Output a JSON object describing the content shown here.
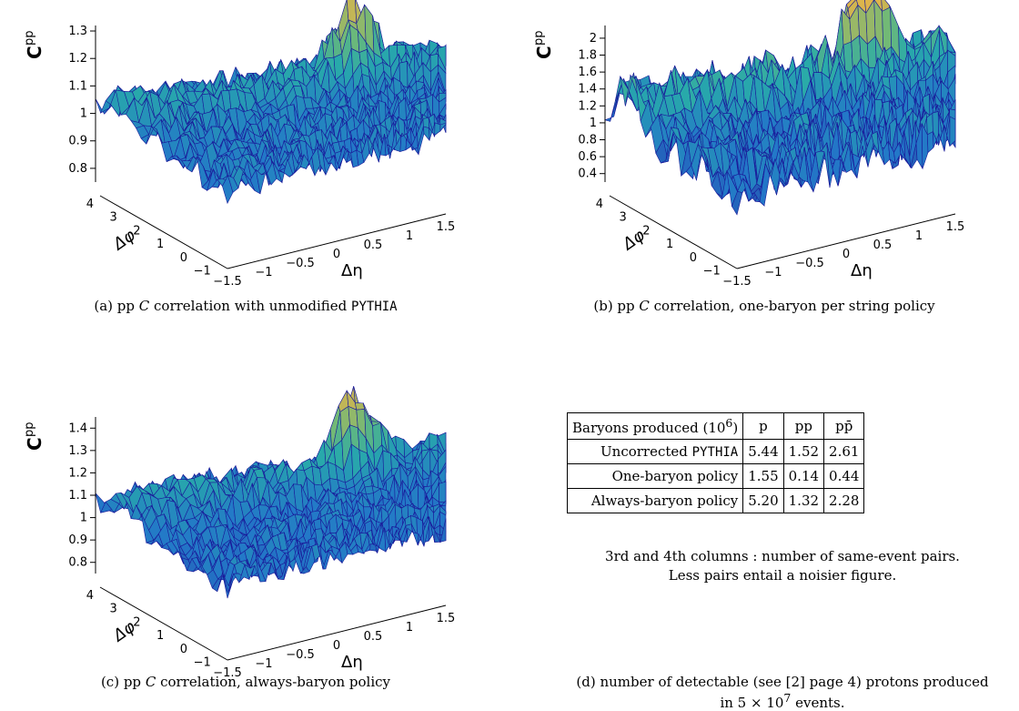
{
  "panels": [
    {
      "caption_prefix": "(a) pp ",
      "caption_var": "C",
      "caption_text": " correlation with unmodified ",
      "caption_code": "PYTHIA",
      "chart_data": {
        "type": "surface",
        "zlabel": "C^pp",
        "xlabel": "Δη",
        "ylabel": "Δφ",
        "z_ticks": [
          "0.8",
          "0.9",
          "1",
          "1.1",
          "1.2",
          "1.3"
        ],
        "z_range": [
          0.75,
          1.32
        ],
        "x_ticks": [
          "−1.5",
          "−1",
          "−0.5",
          "0",
          "0.5",
          "1",
          "1.5"
        ],
        "y_ticks": [
          "−1",
          "0",
          "1",
          "2",
          "3",
          "4"
        ],
        "base_level": 0.95,
        "noise_amplitude": 0.07,
        "near_side_peak": 0.3
      }
    },
    {
      "caption_prefix": "(b) pp ",
      "caption_var": "C",
      "caption_text": " correlation, one-baryon per string policy",
      "caption_code": "",
      "chart_data": {
        "type": "surface",
        "zlabel": "C^pp",
        "xlabel": "Δη",
        "ylabel": "Δφ",
        "z_ticks": [
          "0.4",
          "0.6",
          "0.8",
          "1",
          "1.2",
          "1.4",
          "1.6",
          "1.8",
          "2"
        ],
        "z_range": [
          0.3,
          2.15
        ],
        "x_ticks": [
          "−1.5",
          "−1",
          "−0.5",
          "0",
          "0.5",
          "1",
          "1.5"
        ],
        "y_ticks": [
          "−1",
          "0",
          "1",
          "2",
          "3",
          "4"
        ],
        "base_level": 0.9,
        "noise_amplitude": 0.35,
        "near_side_peak": 1.1
      }
    },
    {
      "caption_prefix": "(c) pp ",
      "caption_var": "C",
      "caption_text": " correlation, always-baryon policy",
      "caption_code": "",
      "chart_data": {
        "type": "surface",
        "zlabel": "C^pp",
        "xlabel": "Δη",
        "ylabel": "Δφ",
        "z_ticks": [
          "0.8",
          "0.9",
          "1",
          "1.1",
          "1.2",
          "1.3",
          "1.4"
        ],
        "z_range": [
          0.75,
          1.45
        ],
        "x_ticks": [
          "−1.5",
          "−1",
          "−0.5",
          "0",
          "0.5",
          "1",
          "1.5"
        ],
        "y_ticks": [
          "−1",
          "0",
          "1",
          "2",
          "3",
          "4"
        ],
        "base_level": 0.97,
        "noise_amplitude": 0.08,
        "near_side_peak": 0.4
      }
    }
  ],
  "table": {
    "header": [
      "Baryons produced (10",
      "6",
      ")",
      "p",
      "pp",
      "pp̄"
    ],
    "rows": [
      {
        "label": "Uncorrected ",
        "label_code": "PYTHIA",
        "p": "5.44",
        "pp": "1.52",
        "ppbar": "2.61"
      },
      {
        "label": "One-baryon policy",
        "label_code": "",
        "p": "1.55",
        "pp": "0.14",
        "ppbar": "0.44"
      },
      {
        "label": "Always-baryon policy",
        "label_code": "",
        "p": "5.20",
        "pp": "1.32",
        "ppbar": "2.28"
      }
    ],
    "note_line1": "3rd and 4th columns : number of same-event pairs.",
    "note_line2": "Less pairs entail a noisier figure."
  },
  "caption_d_line1": "(d) number of detectable (see [2] page 4) protons produced",
  "caption_d_line2_prefix": "in 5 × 10",
  "caption_d_line2_exp": "7",
  "caption_d_line2_suffix": " events."
}
